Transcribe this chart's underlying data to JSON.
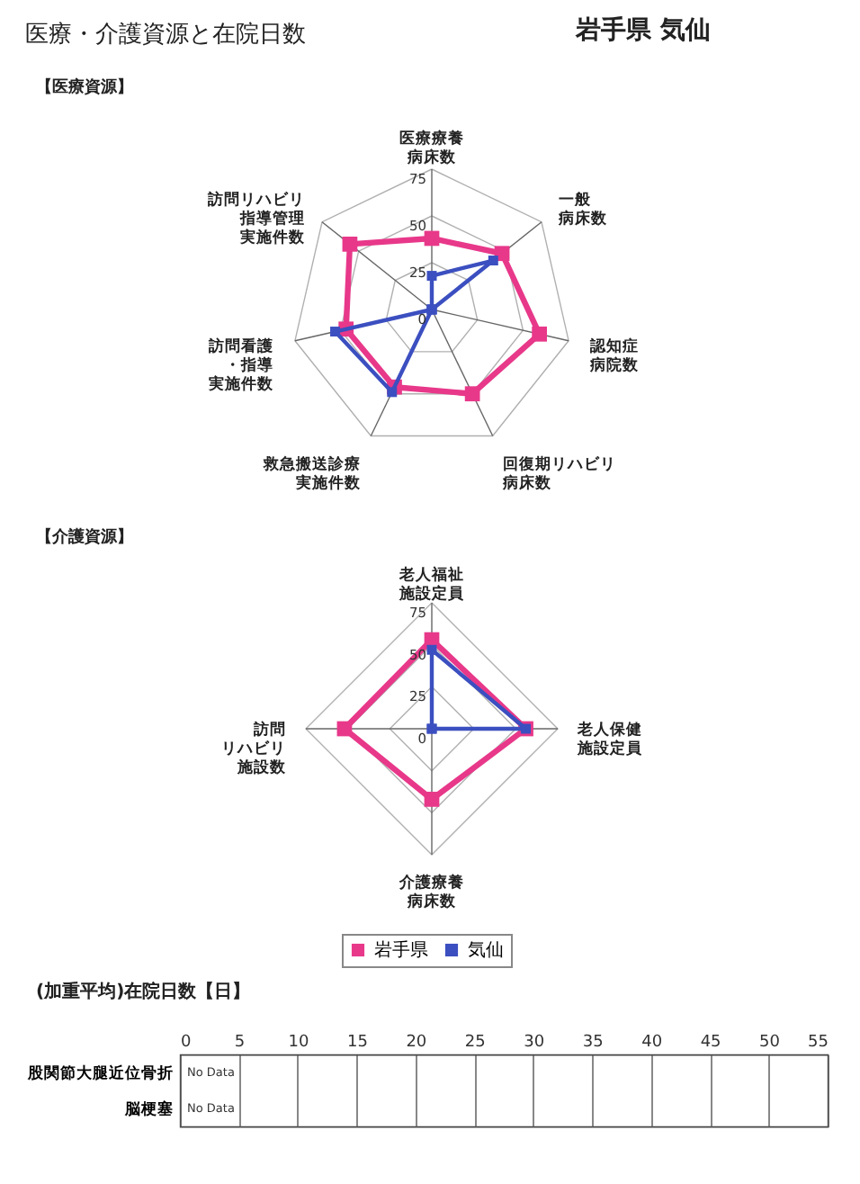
{
  "chart_data": [
    {
      "type": "radar",
      "title": "医療・介護資源と在院日数",
      "subtitle": "岩手県 気仙",
      "annotations": [
        "【医療資源】"
      ],
      "categories": [
        "医療療養病床数",
        "一般病床数",
        "認知症病院数",
        "回復期リハビリ病床数",
        "救急搬送診療実施件数",
        "訪問看護・指導実施件数",
        "訪問リハビリ指導管理実施件数"
      ],
      "series": [
        {
          "color": "#e8388a",
          "values": [
            38,
            48,
            59,
            50,
            46,
            47,
            56
          ]
        },
        {
          "color": "#3b4fc0",
          "values": [
            18,
            42,
            0,
            0,
            49,
            53,
            0
          ]
        }
      ],
      "ylim": [
        0,
        75
      ],
      "yticks": [
        0,
        25,
        50,
        75
      ],
      "grid": true,
      "marker": "square",
      "line_style": "solid"
    },
    {
      "type": "radar",
      "title": "【介護資源】",
      "categories": [
        "老人福祉施設定員",
        "老人保健施設定員",
        "介護療養病床数",
        "訪問リハビリ施設数"
      ],
      "series": [
        {
          "name": "岩手県",
          "color": "#e8388a",
          "values": [
            53,
            56,
            42,
            52
          ]
        },
        {
          "name": "気仙",
          "color": "#3b4fc0",
          "values": [
            47,
            56,
            0,
            0
          ]
        }
      ],
      "ylim": [
        0,
        75
      ],
      "yticks": [
        0,
        25,
        50,
        75
      ],
      "grid": true,
      "marker": "square",
      "line_style": "solid",
      "legend": "bottom"
    },
    {
      "type": "bar",
      "orientation": "horizontal",
      "title": "(加重平均)在院日数【日】",
      "categories": [
        "股関節大腿近位骨折",
        "脳梗塞"
      ],
      "values": [
        null,
        null
      ],
      "value_labels": [
        "No Data",
        "No Data"
      ],
      "xlim": [
        0,
        55
      ],
      "xticks": [
        0,
        5,
        10,
        15,
        20,
        25,
        30,
        35,
        40,
        45,
        50,
        55
      ],
      "grid": "x"
    }
  ]
}
